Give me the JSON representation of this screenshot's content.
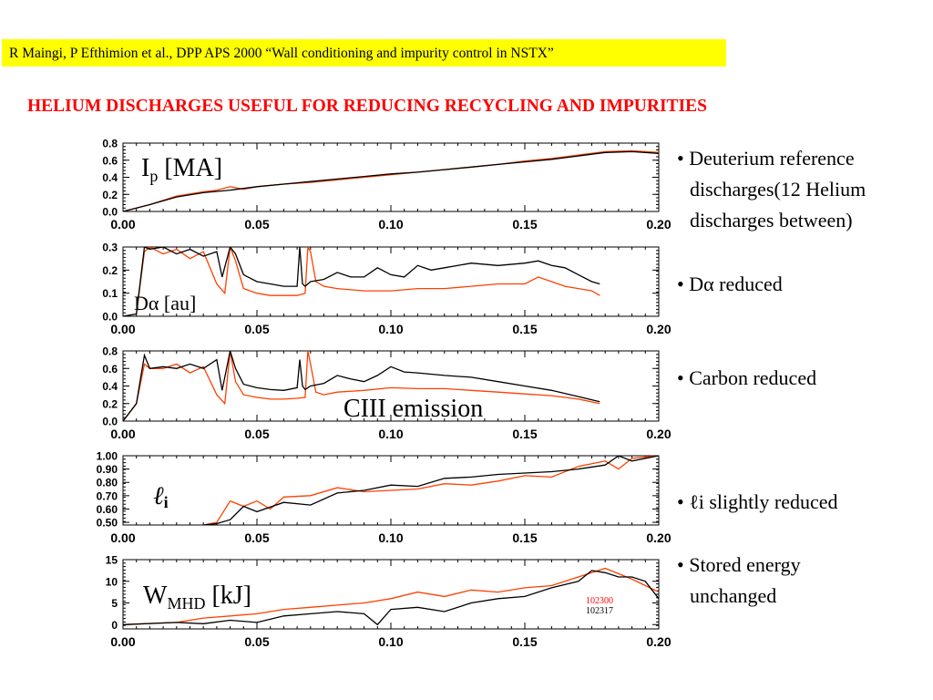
{
  "banner": "R Maingi, P Efthimion et al., DPP APS 2000 “Wall conditioning  and impurity control in NSTX”",
  "headline": "HELIUM DISCHARGES USEFUL FOR REDUCING RECYCLING AND IMPURITIES",
  "bullets": [
    {
      "lines": [
        "Deuterium reference",
        "discharges(12 Helium",
        "discharges between)"
      ]
    },
    {
      "lines": [
        "Dα reduced"
      ]
    },
    {
      "lines": [
        "Carbon reduced"
      ]
    },
    {
      "lines": [
        "ℓi slightly reduced"
      ]
    },
    {
      "lines": [
        "Stored energy",
        "unchanged"
      ]
    }
  ],
  "colors": {
    "deuterium": "#000000",
    "helium": "#ff4000",
    "banner": "#ffff00",
    "headline": "#ff0000"
  },
  "chart_data": [
    {
      "type": "line",
      "label": "Ip [MA]",
      "xlim": [
        0,
        0.2
      ],
      "ylim": [
        0,
        0.8
      ],
      "xticks": [
        "0.00",
        "0.05",
        "0.10",
        "0.15",
        "0.20"
      ],
      "yticks": [
        "0.8",
        "0.6",
        "0.4",
        "0.2",
        "0.0"
      ],
      "ytick_values": [
        0.8,
        0.6,
        0.4,
        0.2,
        0.0
      ],
      "series": [
        {
          "shot": "102317",
          "x": [
            0.0,
            0.01,
            0.02,
            0.03,
            0.04,
            0.05,
            0.06,
            0.07,
            0.08,
            0.09,
            0.1,
            0.11,
            0.12,
            0.13,
            0.14,
            0.15,
            0.16,
            0.17,
            0.18,
            0.19,
            0.2
          ],
          "y": [
            0.0,
            0.08,
            0.17,
            0.22,
            0.25,
            0.29,
            0.32,
            0.35,
            0.38,
            0.41,
            0.44,
            0.46,
            0.49,
            0.52,
            0.55,
            0.58,
            0.61,
            0.65,
            0.69,
            0.7,
            0.68
          ]
        },
        {
          "shot": "102300",
          "x": [
            0.0,
            0.01,
            0.02,
            0.03,
            0.035,
            0.04,
            0.045,
            0.05,
            0.06,
            0.07,
            0.08,
            0.09,
            0.1,
            0.11,
            0.12,
            0.13,
            0.14,
            0.15,
            0.16,
            0.17,
            0.18,
            0.19,
            0.2
          ],
          "y": [
            0.0,
            0.08,
            0.18,
            0.23,
            0.25,
            0.29,
            0.26,
            0.29,
            0.32,
            0.34,
            0.37,
            0.4,
            0.43,
            0.46,
            0.49,
            0.52,
            0.55,
            0.59,
            0.62,
            0.66,
            0.7,
            0.71,
            0.69
          ]
        }
      ]
    },
    {
      "type": "line",
      "label": "Dα [au]",
      "xlim": [
        0,
        0.2
      ],
      "ylim": [
        0,
        0.3
      ],
      "xticks": [
        "0.00",
        "0.05",
        "0.10",
        "0.15",
        "0.20"
      ],
      "yticks": [
        "0.3",
        "0.2",
        "0.1",
        "0.0"
      ],
      "ytick_values": [
        0.3,
        0.2,
        0.1,
        0.0
      ],
      "series": [
        {
          "shot": "102317",
          "x": [
            0.0,
            0.005,
            0.008,
            0.01,
            0.015,
            0.02,
            0.025,
            0.03,
            0.035,
            0.037,
            0.04,
            0.042,
            0.045,
            0.05,
            0.055,
            0.06,
            0.065,
            0.066,
            0.067,
            0.068,
            0.07,
            0.075,
            0.08,
            0.085,
            0.09,
            0.095,
            0.1,
            0.105,
            0.11,
            0.115,
            0.12,
            0.13,
            0.14,
            0.15,
            0.155,
            0.16,
            0.165,
            0.17,
            0.175,
            0.178
          ],
          "y": [
            0.0,
            0.01,
            0.3,
            0.29,
            0.3,
            0.27,
            0.29,
            0.26,
            0.28,
            0.17,
            0.3,
            0.27,
            0.18,
            0.15,
            0.14,
            0.13,
            0.13,
            0.3,
            0.14,
            0.13,
            0.15,
            0.16,
            0.19,
            0.17,
            0.17,
            0.21,
            0.18,
            0.17,
            0.22,
            0.2,
            0.21,
            0.23,
            0.22,
            0.23,
            0.24,
            0.22,
            0.21,
            0.18,
            0.15,
            0.14
          ]
        },
        {
          "shot": "102300",
          "x": [
            0.0,
            0.005,
            0.008,
            0.01,
            0.015,
            0.02,
            0.025,
            0.03,
            0.035,
            0.038,
            0.04,
            0.042,
            0.045,
            0.05,
            0.055,
            0.06,
            0.065,
            0.068,
            0.069,
            0.07,
            0.072,
            0.075,
            0.08,
            0.09,
            0.1,
            0.11,
            0.12,
            0.13,
            0.14,
            0.15,
            0.155,
            0.16,
            0.165,
            0.17,
            0.175,
            0.178
          ],
          "y": [
            0.0,
            0.01,
            0.28,
            0.3,
            0.27,
            0.29,
            0.25,
            0.28,
            0.14,
            0.1,
            0.3,
            0.24,
            0.12,
            0.1,
            0.09,
            0.09,
            0.09,
            0.1,
            0.3,
            0.28,
            0.15,
            0.13,
            0.12,
            0.11,
            0.11,
            0.12,
            0.12,
            0.13,
            0.14,
            0.14,
            0.17,
            0.15,
            0.13,
            0.12,
            0.11,
            0.09
          ]
        }
      ]
    },
    {
      "type": "line",
      "label": "CIII emission",
      "xlim": [
        0,
        0.2
      ],
      "ylim": [
        0,
        0.8
      ],
      "xticks": [
        "0.00",
        "0.05",
        "0.10",
        "0.15",
        "0.20"
      ],
      "yticks": [
        "0.8",
        "0.6",
        "0.4",
        "0.2",
        "0.0"
      ],
      "ytick_values": [
        0.8,
        0.6,
        0.4,
        0.2,
        0.0
      ],
      "series": [
        {
          "shot": "102317",
          "x": [
            0.0,
            0.005,
            0.008,
            0.01,
            0.015,
            0.02,
            0.025,
            0.03,
            0.035,
            0.037,
            0.04,
            0.042,
            0.045,
            0.05,
            0.055,
            0.06,
            0.065,
            0.066,
            0.067,
            0.068,
            0.07,
            0.075,
            0.08,
            0.085,
            0.09,
            0.095,
            0.1,
            0.105,
            0.11,
            0.12,
            0.13,
            0.14,
            0.15,
            0.16,
            0.17,
            0.178
          ],
          "y": [
            0.0,
            0.2,
            0.75,
            0.6,
            0.62,
            0.6,
            0.65,
            0.6,
            0.7,
            0.35,
            0.8,
            0.6,
            0.42,
            0.38,
            0.36,
            0.35,
            0.38,
            0.7,
            0.4,
            0.36,
            0.4,
            0.43,
            0.52,
            0.48,
            0.45,
            0.52,
            0.62,
            0.56,
            0.55,
            0.52,
            0.5,
            0.45,
            0.4,
            0.35,
            0.28,
            0.22
          ]
        },
        {
          "shot": "102300",
          "x": [
            0.0,
            0.005,
            0.008,
            0.01,
            0.015,
            0.02,
            0.025,
            0.03,
            0.035,
            0.038,
            0.04,
            0.042,
            0.045,
            0.05,
            0.055,
            0.06,
            0.065,
            0.068,
            0.069,
            0.07,
            0.072,
            0.075,
            0.08,
            0.09,
            0.1,
            0.11,
            0.12,
            0.13,
            0.14,
            0.15,
            0.16,
            0.17,
            0.178
          ],
          "y": [
            0.0,
            0.2,
            0.65,
            0.6,
            0.6,
            0.65,
            0.55,
            0.62,
            0.3,
            0.2,
            0.8,
            0.45,
            0.3,
            0.27,
            0.25,
            0.25,
            0.26,
            0.27,
            0.8,
            0.65,
            0.33,
            0.3,
            0.33,
            0.35,
            0.38,
            0.37,
            0.37,
            0.35,
            0.33,
            0.31,
            0.29,
            0.25,
            0.2
          ]
        }
      ]
    },
    {
      "type": "line",
      "label": "ℓi",
      "xlim": [
        0,
        0.2
      ],
      "ylim": [
        0.48,
        1.0
      ],
      "xticks": [
        "0.00",
        "0.05",
        "0.10",
        "0.15",
        "0.20"
      ],
      "yticks": [
        "1.00",
        "0.90",
        "0.80",
        "0.70",
        "0.60",
        "0.50"
      ],
      "ytick_values": [
        1.0,
        0.9,
        0.8,
        0.7,
        0.6,
        0.5
      ],
      "series": [
        {
          "shot": "102317",
          "x": [
            0.03,
            0.035,
            0.04,
            0.045,
            0.05,
            0.06,
            0.07,
            0.08,
            0.09,
            0.1,
            0.11,
            0.12,
            0.13,
            0.14,
            0.15,
            0.16,
            0.17,
            0.18,
            0.185,
            0.19,
            0.2
          ],
          "y": [
            0.48,
            0.49,
            0.52,
            0.62,
            0.58,
            0.65,
            0.63,
            0.72,
            0.74,
            0.78,
            0.77,
            0.83,
            0.84,
            0.86,
            0.87,
            0.88,
            0.9,
            0.93,
            1.0,
            0.96,
            1.0
          ]
        },
        {
          "shot": "102300",
          "x": [
            0.03,
            0.035,
            0.04,
            0.045,
            0.05,
            0.055,
            0.06,
            0.07,
            0.08,
            0.09,
            0.1,
            0.11,
            0.12,
            0.13,
            0.14,
            0.15,
            0.16,
            0.17,
            0.18,
            0.185,
            0.19,
            0.2
          ],
          "y": [
            0.48,
            0.5,
            0.66,
            0.62,
            0.66,
            0.6,
            0.69,
            0.7,
            0.76,
            0.73,
            0.74,
            0.75,
            0.79,
            0.78,
            0.81,
            0.85,
            0.84,
            0.92,
            0.96,
            0.9,
            0.98,
            1.0
          ]
        }
      ]
    },
    {
      "type": "line",
      "label": "WMHD [kJ]",
      "xlim": [
        0,
        0.2
      ],
      "ylim": [
        -1,
        15
      ],
      "xticks": [
        "0.00",
        "0.05",
        "0.10",
        "0.15",
        "0.20"
      ],
      "yticks": [
        "15",
        "10",
        "5",
        "0"
      ],
      "ytick_values": [
        15,
        10,
        5,
        0
      ],
      "legend": [
        "102300",
        "102317"
      ],
      "series": [
        {
          "shot": "102317",
          "x": [
            0.0,
            0.02,
            0.03,
            0.04,
            0.05,
            0.06,
            0.07,
            0.08,
            0.09,
            0.095,
            0.1,
            0.11,
            0.12,
            0.13,
            0.14,
            0.15,
            0.16,
            0.17,
            0.175,
            0.18,
            0.185,
            0.19,
            0.195,
            0.2
          ],
          "y": [
            0.0,
            0.5,
            0.2,
            1.0,
            0.5,
            2.0,
            2.5,
            3.0,
            2.5,
            0.0,
            3.5,
            4.0,
            3.0,
            5.0,
            6.0,
            6.5,
            8.5,
            10.0,
            12.5,
            12.0,
            11.0,
            11.0,
            10.0,
            6.0
          ]
        },
        {
          "shot": "102300",
          "x": [
            0.0,
            0.02,
            0.03,
            0.04,
            0.05,
            0.06,
            0.07,
            0.08,
            0.09,
            0.1,
            0.11,
            0.12,
            0.13,
            0.14,
            0.15,
            0.16,
            0.17,
            0.18,
            0.19,
            0.195,
            0.2
          ],
          "y": [
            0.0,
            0.5,
            1.5,
            2.0,
            2.5,
            3.5,
            4.0,
            4.5,
            5.0,
            6.0,
            7.5,
            6.5,
            8.0,
            7.5,
            8.5,
            9.0,
            11.0,
            13.0,
            10.5,
            9.0,
            7.5
          ]
        }
      ]
    }
  ]
}
